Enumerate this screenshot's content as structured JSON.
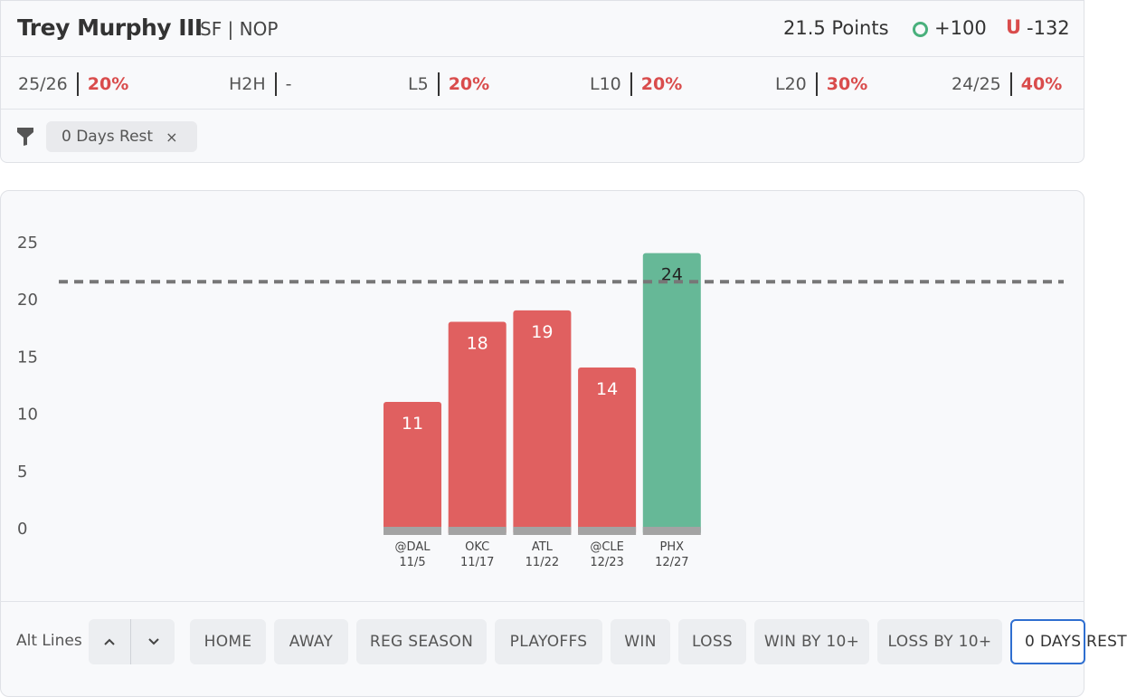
{
  "header": {
    "player_name": "Trey Murphy III",
    "player_meta": "SF | NOP",
    "line": "21.5 Points",
    "over_odds": "+100",
    "under_label": "U",
    "under_odds": "-132",
    "over_icon": "circle-o-icon",
    "colors": {
      "over": "#49b07c",
      "under": "#d94c4c"
    }
  },
  "stats": [
    {
      "label": "25/26",
      "value": "20%"
    },
    {
      "label": "H2H",
      "value": "-"
    },
    {
      "label": "L5",
      "value": "20%"
    },
    {
      "label": "L10",
      "value": "20%"
    },
    {
      "label": "L20",
      "value": "30%"
    },
    {
      "label": "24/25",
      "value": "40%"
    }
  ],
  "filter": {
    "icon": "funnel-icon",
    "chip_label": "0 Days Rest",
    "chip_close": "×"
  },
  "chart_data": {
    "type": "bar",
    "categories": [
      "@DAL 11/5",
      "OKC 11/17",
      "ATL 11/22",
      "@CLE 12/23",
      "PHX 12/27"
    ],
    "opponents": [
      "@DAL",
      "OKC",
      "ATL",
      "@CLE",
      "PHX"
    ],
    "dates": [
      "11/5",
      "11/17",
      "11/22",
      "12/23",
      "12/27"
    ],
    "values": [
      11,
      18,
      19,
      14,
      24
    ],
    "line_value": 21.5,
    "yticks": [
      0,
      5,
      10,
      15,
      20,
      25
    ],
    "ylim": [
      0,
      25
    ],
    "colors": {
      "under": "#e06060",
      "over": "#66b897",
      "base": "#a3a3a3",
      "line": "#777777"
    }
  },
  "bottom_bar": {
    "alt_lines_label": "Alt Lines",
    "up_icon": "chevron-up-icon",
    "down_icon": "chevron-down-icon",
    "filters": [
      "HOME",
      "AWAY",
      "REG SEASON",
      "PLAYOFFS",
      "WIN",
      "LOSS",
      "WIN BY 10+",
      "LOSS BY 10+",
      "0 DAYS REST"
    ],
    "active_filter": "0 DAYS REST"
  }
}
